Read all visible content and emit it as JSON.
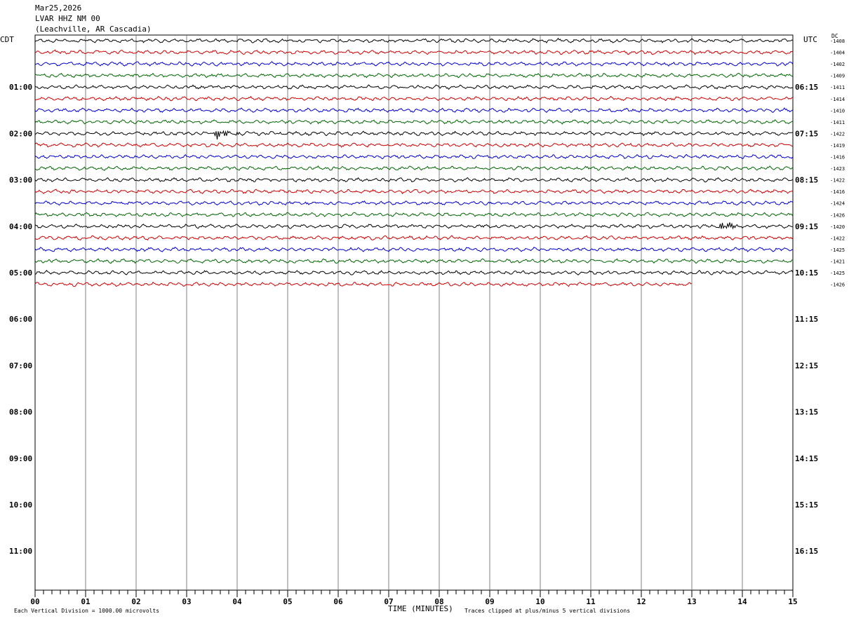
{
  "header": {
    "date": "Mar25,2026",
    "station": "LVAR HHZ NM 00",
    "location": "(Leachville, AR Cascadia)"
  },
  "left_tz": "CDT",
  "right_tz": "UTC",
  "dc_label": "DC",
  "footer": {
    "scale_note": "Each Vertical Division = 1000.00 microvolts",
    "xlabel": "TIME (MINUTES)",
    "clip_note": "Traces clipped at plus/minus 5 vertical divisions"
  },
  "colors": [
    "#000000",
    "#cc0000",
    "#0000cc",
    "#006600"
  ],
  "chart_data": {
    "type": "line",
    "title": "LVAR HHZ NM 00",
    "xlabel": "TIME (MINUTES)",
    "xlim": [
      0,
      15
    ],
    "x_ticks": [
      "00",
      "01",
      "02",
      "03",
      "04",
      "05",
      "06",
      "07",
      "08",
      "09",
      "10",
      "11",
      "12",
      "13",
      "14",
      "15"
    ],
    "left_hour_labels": [
      "01:00",
      "02:00",
      "03:00",
      "04:00",
      "05:00",
      "06:00",
      "07:00",
      "08:00",
      "09:00",
      "10:00",
      "11:00"
    ],
    "right_hour_labels": [
      "06:15",
      "07:15",
      "08:15",
      "09:15",
      "10:15",
      "11:15",
      "12:15",
      "13:15",
      "14:15",
      "15:15",
      "16:15"
    ],
    "trace_interval_minutes": 15,
    "trace_count": 22,
    "dc_offsets": [
      -1408,
      -1404,
      -1402,
      -1409,
      -1411,
      -1414,
      -1410,
      -1411,
      -1422,
      -1419,
      -1416,
      -1423,
      -1422,
      -1416,
      -1424,
      -1426,
      -1420,
      -1422,
      -1425,
      -1421,
      -1425,
      -1426
    ],
    "last_trace_end_minutes": 13,
    "events": [
      {
        "trace": 8,
        "minute": 3.6
      },
      {
        "trace": 16,
        "minute": 13.6
      }
    ]
  }
}
